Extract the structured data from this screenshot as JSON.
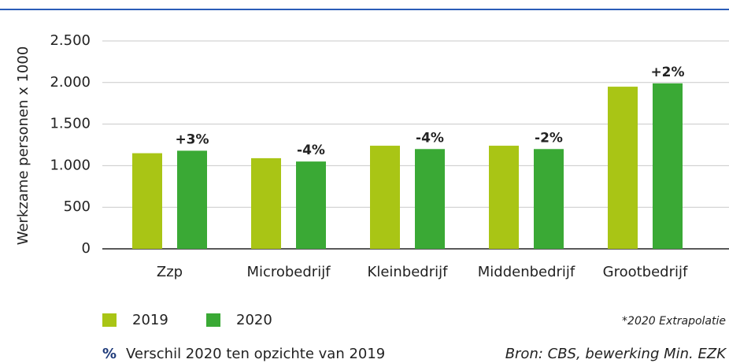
{
  "chart_data": {
    "type": "bar",
    "ylabel": "Werkzame personen x 1000",
    "categories": [
      "Zzp",
      "Microbedrijf",
      "Kleinbedrijf",
      "Middenbedrijf",
      "Grootbedrijf"
    ],
    "series": [
      {
        "name": "2019",
        "color": "#a9c515",
        "values": [
          1150,
          1090,
          1240,
          1240,
          1950
        ]
      },
      {
        "name": "2020",
        "color": "#3aa935",
        "values": [
          1180,
          1050,
          1200,
          1200,
          1990
        ]
      }
    ],
    "change": {
      "values": [
        3,
        -4,
        -4,
        -2,
        2
      ],
      "value_labels": [
        "+3%",
        "-4%",
        "-4%",
        "-2%",
        "+2%"
      ]
    },
    "ylim": [
      0,
      2500
    ],
    "yticks": [
      0,
      500,
      {
        "value": 1000,
        "label": "1.000"
      },
      {
        "value": 1500,
        "label": "1.500"
      },
      {
        "value": 2000,
        "label": "2.000"
      },
      {
        "value": 2500,
        "label": "2.500"
      }
    ],
    "grid": true,
    "footnote": "*2020 Extrapolatie",
    "legend_symbol": "%",
    "legend_note": "Verschil 2020 ten opzichte van 2019",
    "source": "Bron: CBS, bewerking Min. EZK"
  }
}
